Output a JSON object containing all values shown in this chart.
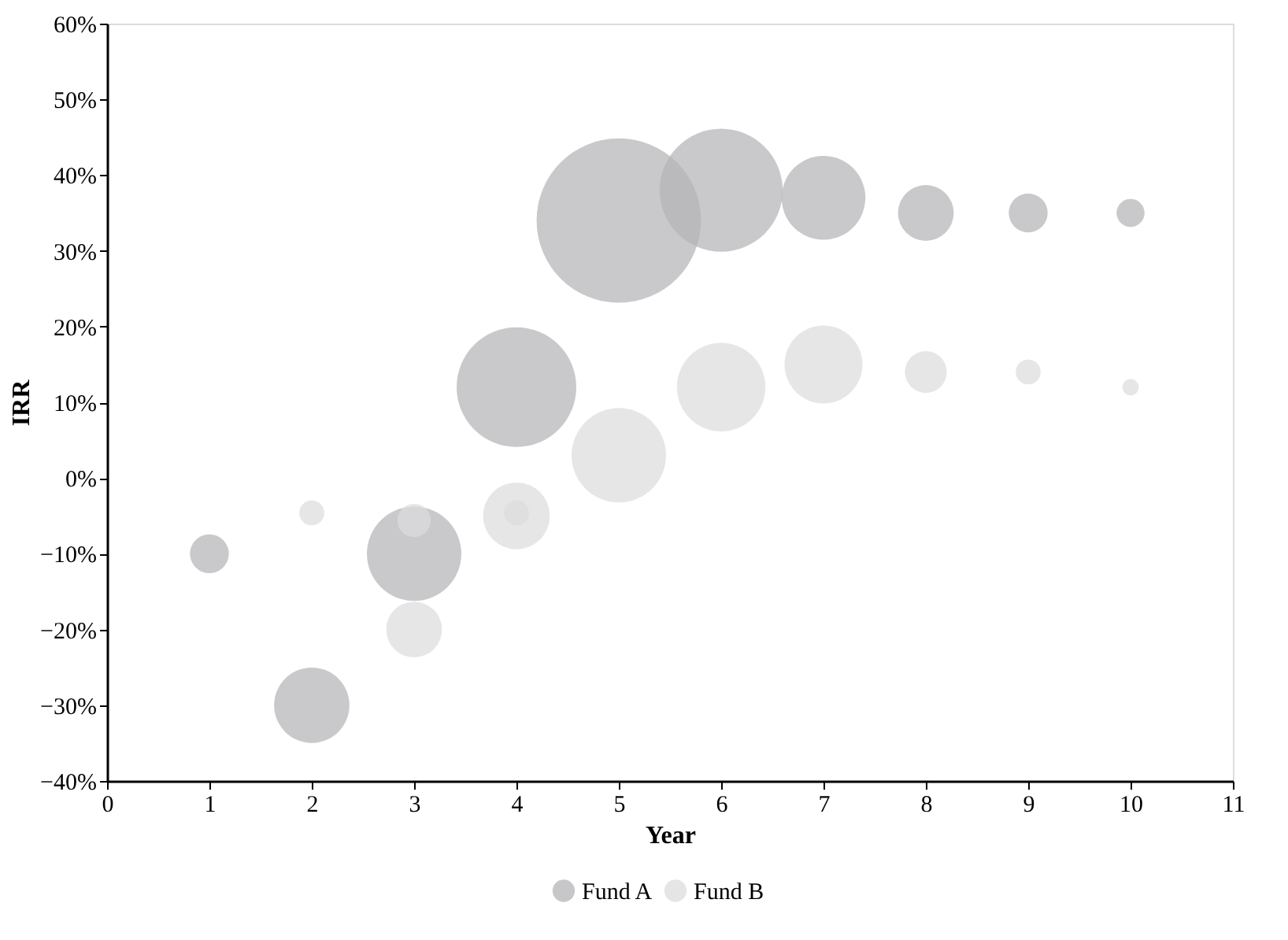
{
  "chart_data": {
    "type": "bubble",
    "xlabel": "Year",
    "ylabel": "IRR",
    "xlim": [
      0,
      11
    ],
    "xticks": [
      0,
      1,
      2,
      3,
      4,
      5,
      6,
      7,
      8,
      9,
      10,
      11
    ],
    "ylim": [
      -40,
      60
    ],
    "yticks": [
      {
        "value": -40,
        "label": "−40%"
      },
      {
        "value": -30,
        "label": "−30%"
      },
      {
        "value": -20,
        "label": "−20%"
      },
      {
        "value": -10,
        "label": "−10%"
      },
      {
        "value": 0,
        "label": "0%"
      },
      {
        "value": 10,
        "label": "10%"
      },
      {
        "value": 20,
        "label": "20%"
      },
      {
        "value": 30,
        "label": "30%"
      },
      {
        "value": 40,
        "label": "40%"
      },
      {
        "value": 50,
        "label": "50%"
      },
      {
        "value": 60,
        "label": "60%"
      }
    ],
    "grid": false,
    "legend": "bottom",
    "marker": "circle",
    "series": [
      {
        "name": "Fund A",
        "color": "#b4b4b7",
        "x": [
          1,
          2,
          3,
          4,
          5,
          6,
          7,
          8,
          9,
          10
        ],
        "values": [
          -10,
          -30,
          -10,
          12,
          34,
          38,
          37,
          35,
          35,
          35
        ],
        "sizes": [
          0.056,
          0.21,
          0.33,
          0.53,
          1,
          0.56,
          0.26,
          0.115,
          0.056,
          0.029
        ]
      },
      {
        "name": "Fund B",
        "color": "#dcdcde",
        "x": [
          2,
          3,
          4,
          5,
          6,
          7,
          8,
          9,
          10,
          3,
          4
        ],
        "values": [
          -4.6,
          -20,
          -5,
          3,
          12,
          15,
          14,
          14,
          12,
          -5.6,
          -4.6
        ],
        "sizes": [
          0.023,
          0.115,
          0.165,
          0.33,
          0.29,
          0.225,
          0.065,
          0.023,
          0.01,
          0.041,
          0.023
        ]
      }
    ]
  }
}
